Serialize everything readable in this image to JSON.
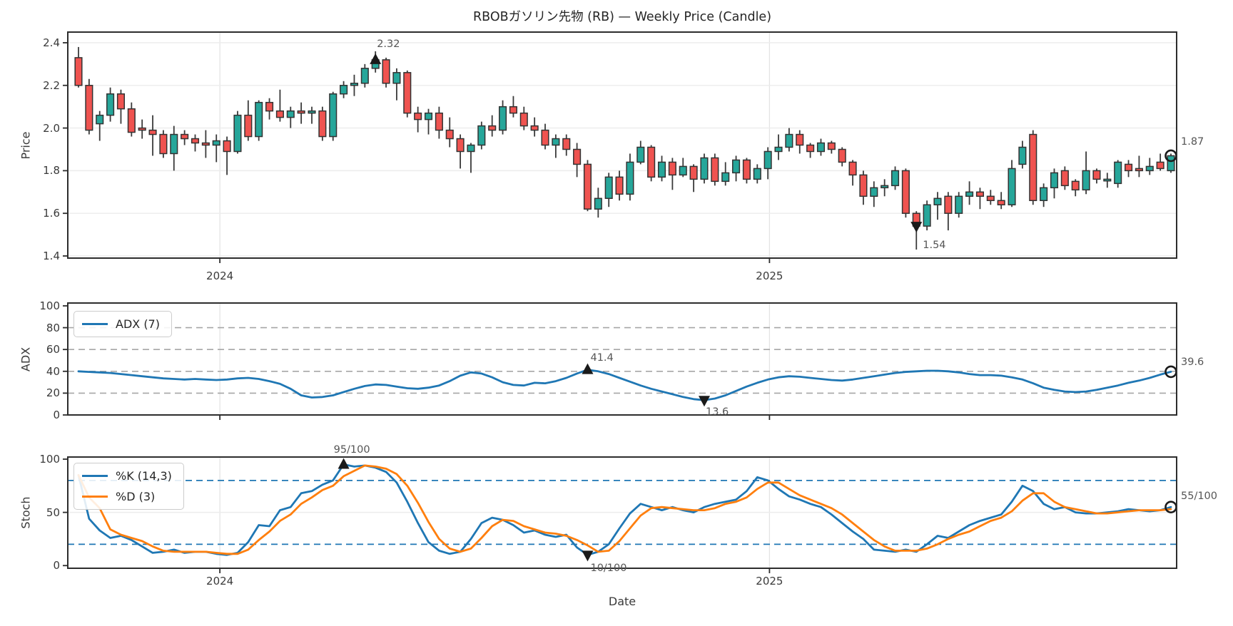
{
  "title": "RBOBガソリン先物 (RB) — Weekly Price (Candle)",
  "colors": {
    "up": "#26a69a",
    "down": "#ef5350",
    "candle_edge": "#333333",
    "wick": "#3a3a3a",
    "line_blue": "#1f77b4",
    "line_orange": "#ff7f0e",
    "grid_light": "#ececec",
    "grid_vertical": "#e4e4e4",
    "dashed_gray": "#a6a6a6",
    "dashed_blue": "#1f77b4",
    "spine": "#2d2d2d",
    "marker": "#1a1a1a",
    "text": "#3a3a3a",
    "annotation_text": "#555555"
  },
  "chart_data": [
    {
      "type": "candlestick",
      "panel": "price",
      "ylabel": "Price",
      "ylim": [
        1.39,
        2.45
      ],
      "yticks": [
        1.4,
        1.6,
        1.8,
        2.0,
        2.2,
        2.4
      ],
      "tick_decimals": 1,
      "xticks": [
        {
          "label": "2024",
          "index": 13.33
        },
        {
          "label": "2025",
          "index": 65.15
        }
      ],
      "candles": [
        [
          2.33,
          2.38,
          2.19,
          2.2
        ],
        [
          2.2,
          2.23,
          1.97,
          1.99
        ],
        [
          2.02,
          2.08,
          1.94,
          2.06
        ],
        [
          2.06,
          2.19,
          2.03,
          2.16
        ],
        [
          2.16,
          2.18,
          2.02,
          2.09
        ],
        [
          2.09,
          2.12,
          1.96,
          1.98
        ],
        [
          2.0,
          2.04,
          1.95,
          1.99
        ],
        [
          1.99,
          2.06,
          1.87,
          1.97
        ],
        [
          1.97,
          1.99,
          1.86,
          1.88
        ],
        [
          1.88,
          2.01,
          1.8,
          1.97
        ],
        [
          1.97,
          1.99,
          1.92,
          1.95
        ],
        [
          1.95,
          1.97,
          1.89,
          1.93
        ],
        [
          1.93,
          1.99,
          1.86,
          1.92
        ],
        [
          1.92,
          1.97,
          1.84,
          1.94
        ],
        [
          1.94,
          1.96,
          1.78,
          1.89
        ],
        [
          1.89,
          2.08,
          1.88,
          2.06
        ],
        [
          2.06,
          2.13,
          1.94,
          1.96
        ],
        [
          1.96,
          2.13,
          1.94,
          2.12
        ],
        [
          2.12,
          2.14,
          2.04,
          2.08
        ],
        [
          2.08,
          2.18,
          2.03,
          2.05
        ],
        [
          2.05,
          2.1,
          2.0,
          2.08
        ],
        [
          2.08,
          2.12,
          2.02,
          2.07
        ],
        [
          2.07,
          2.1,
          2.02,
          2.08
        ],
        [
          2.08,
          2.1,
          1.94,
          1.96
        ],
        [
          1.96,
          2.17,
          1.94,
          2.16
        ],
        [
          2.16,
          2.22,
          2.14,
          2.2
        ],
        [
          2.2,
          2.25,
          2.15,
          2.21
        ],
        [
          2.21,
          2.3,
          2.19,
          2.28
        ],
        [
          2.28,
          2.36,
          2.26,
          2.32
        ],
        [
          2.32,
          2.33,
          2.19,
          2.21
        ],
        [
          2.21,
          2.28,
          2.13,
          2.26
        ],
        [
          2.26,
          2.27,
          2.05,
          2.07
        ],
        [
          2.07,
          2.1,
          1.98,
          2.04
        ],
        [
          2.04,
          2.09,
          1.97,
          2.07
        ],
        [
          2.07,
          2.1,
          1.95,
          1.99
        ],
        [
          1.99,
          2.05,
          1.91,
          1.95
        ],
        [
          1.95,
          1.97,
          1.81,
          1.89
        ],
        [
          1.89,
          1.93,
          1.79,
          1.92
        ],
        [
          1.92,
          2.03,
          1.9,
          2.01
        ],
        [
          2.01,
          2.06,
          1.96,
          1.99
        ],
        [
          1.99,
          2.13,
          1.97,
          2.1
        ],
        [
          2.1,
          2.15,
          2.05,
          2.07
        ],
        [
          2.07,
          2.1,
          1.99,
          2.01
        ],
        [
          2.01,
          2.05,
          1.96,
          1.99
        ],
        [
          1.99,
          2.02,
          1.9,
          1.92
        ],
        [
          1.92,
          1.97,
          1.86,
          1.95
        ],
        [
          1.95,
          1.97,
          1.87,
          1.9
        ],
        [
          1.9,
          1.93,
          1.77,
          1.83
        ],
        [
          1.83,
          1.85,
          1.61,
          1.62
        ],
        [
          1.62,
          1.72,
          1.58,
          1.67
        ],
        [
          1.67,
          1.79,
          1.63,
          1.77
        ],
        [
          1.77,
          1.8,
          1.66,
          1.69
        ],
        [
          1.69,
          1.88,
          1.66,
          1.84
        ],
        [
          1.84,
          1.94,
          1.83,
          1.91
        ],
        [
          1.91,
          1.92,
          1.75,
          1.77
        ],
        [
          1.77,
          1.87,
          1.75,
          1.84
        ],
        [
          1.84,
          1.86,
          1.71,
          1.78
        ],
        [
          1.78,
          1.86,
          1.77,
          1.82
        ],
        [
          1.82,
          1.83,
          1.7,
          1.76
        ],
        [
          1.76,
          1.88,
          1.74,
          1.86
        ],
        [
          1.86,
          1.88,
          1.73,
          1.75
        ],
        [
          1.75,
          1.84,
          1.73,
          1.79
        ],
        [
          1.79,
          1.87,
          1.75,
          1.85
        ],
        [
          1.85,
          1.86,
          1.74,
          1.76
        ],
        [
          1.76,
          1.83,
          1.74,
          1.81
        ],
        [
          1.81,
          1.91,
          1.76,
          1.89
        ],
        [
          1.89,
          1.97,
          1.85,
          1.91
        ],
        [
          1.91,
          2.0,
          1.89,
          1.97
        ],
        [
          1.97,
          1.99,
          1.88,
          1.92
        ],
        [
          1.92,
          1.93,
          1.86,
          1.89
        ],
        [
          1.89,
          1.95,
          1.87,
          1.93
        ],
        [
          1.93,
          1.94,
          1.88,
          1.9
        ],
        [
          1.9,
          1.91,
          1.82,
          1.84
        ],
        [
          1.84,
          1.85,
          1.73,
          1.78
        ],
        [
          1.78,
          1.8,
          1.64,
          1.68
        ],
        [
          1.68,
          1.75,
          1.63,
          1.72
        ],
        [
          1.72,
          1.76,
          1.68,
          1.73
        ],
        [
          1.73,
          1.82,
          1.71,
          1.8
        ],
        [
          1.8,
          1.81,
          1.58,
          1.6
        ],
        [
          1.6,
          1.61,
          1.43,
          1.54
        ],
        [
          1.54,
          1.66,
          1.52,
          1.64
        ],
        [
          1.64,
          1.7,
          1.57,
          1.67
        ],
        [
          1.68,
          1.7,
          1.52,
          1.6
        ],
        [
          1.6,
          1.7,
          1.58,
          1.68
        ],
        [
          1.68,
          1.75,
          1.64,
          1.7
        ],
        [
          1.7,
          1.72,
          1.62,
          1.68
        ],
        [
          1.68,
          1.71,
          1.64,
          1.66
        ],
        [
          1.66,
          1.7,
          1.62,
          1.64
        ],
        [
          1.64,
          1.85,
          1.63,
          1.81
        ],
        [
          1.83,
          1.94,
          1.81,
          1.91
        ],
        [
          1.97,
          1.99,
          1.64,
          1.66
        ],
        [
          1.66,
          1.74,
          1.63,
          1.72
        ],
        [
          1.72,
          1.81,
          1.67,
          1.79
        ],
        [
          1.8,
          1.82,
          1.71,
          1.73
        ],
        [
          1.75,
          1.76,
          1.68,
          1.71
        ],
        [
          1.71,
          1.89,
          1.69,
          1.8
        ],
        [
          1.8,
          1.81,
          1.74,
          1.76
        ],
        [
          1.76,
          1.79,
          1.72,
          1.76
        ],
        [
          1.74,
          1.85,
          1.72,
          1.84
        ],
        [
          1.83,
          1.85,
          1.77,
          1.8
        ],
        [
          1.81,
          1.87,
          1.77,
          1.8
        ],
        [
          1.8,
          1.86,
          1.78,
          1.82
        ],
        [
          1.84,
          1.88,
          1.8,
          1.81
        ],
        [
          1.8,
          1.88,
          1.79,
          1.87
        ]
      ],
      "annotations": {
        "max": {
          "index": 28,
          "value": 2.32,
          "label": "2.32"
        },
        "min": {
          "index": 79,
          "value": 1.54,
          "label": "1.54"
        },
        "last": {
          "index": 103,
          "value": 1.87,
          "label": "1.87"
        }
      }
    },
    {
      "type": "line",
      "panel": "adx",
      "ylabel": "ADX",
      "ylim": [
        0,
        102.6
      ],
      "yticks": [
        0,
        20,
        40,
        60,
        80,
        100
      ],
      "tick_decimals": 0,
      "dashed_gray_levels": [
        20,
        40,
        60,
        80
      ],
      "series": [
        {
          "name": "ADX (7)",
          "color": "#1f77b4",
          "values": [
            40,
            39.5,
            39,
            38.5,
            37.5,
            36.5,
            35.5,
            34.5,
            33.5,
            33,
            32.5,
            33,
            32.5,
            32,
            32.5,
            33.5,
            34,
            33,
            31,
            28.5,
            24,
            18,
            16,
            16.5,
            18,
            21,
            24,
            26.5,
            28,
            27.5,
            26,
            24.5,
            24,
            25,
            27,
            31,
            36,
            39,
            38,
            34.5,
            30,
            27.5,
            27,
            29.5,
            29,
            31,
            34,
            38,
            41.4,
            40,
            37.5,
            34,
            30.5,
            27,
            24,
            21.5,
            19,
            16.5,
            14.5,
            13.6,
            15,
            18,
            22,
            26,
            29.5,
            32.5,
            34.5,
            35.5,
            35,
            34,
            33,
            32,
            31.5,
            32.5,
            34,
            35.5,
            37,
            38.5,
            39.5,
            40,
            40.5,
            40.5,
            40,
            39,
            37.5,
            36.5,
            36.5,
            36,
            34.5,
            32.5,
            29,
            25,
            23,
            21.5,
            21,
            21.5,
            23,
            25,
            27,
            29.5,
            31.5,
            34,
            37,
            39.6
          ]
        }
      ],
      "annotations": {
        "max": {
          "index": 48,
          "value": 41.4,
          "label": "41.4"
        },
        "min": {
          "index": 59,
          "value": 13.6,
          "label": "13.6"
        },
        "last": {
          "index": 103,
          "value": 39.6,
          "label": "39.6"
        }
      }
    },
    {
      "type": "line",
      "panel": "stoch",
      "ylabel": "Stoch",
      "xlabel": "Date",
      "ylim": [
        -2.5,
        102
      ],
      "yticks": [
        0,
        50,
        100
      ],
      "tick_decimals": 0,
      "dashed_blue_levels": [
        20,
        80
      ],
      "solid_grid_levels": [
        50
      ],
      "series": [
        {
          "name": "%K (14,3)",
          "color": "#1f77b4",
          "values": [
            85,
            44,
            33,
            26,
            28,
            24,
            18,
            12,
            13,
            15,
            12,
            13,
            13,
            11,
            10,
            12,
            22,
            38,
            37,
            52,
            55,
            68,
            70,
            76,
            80,
            95,
            93,
            94,
            92,
            88,
            78,
            60,
            40,
            22,
            14,
            11,
            13,
            25,
            40,
            45,
            43,
            38,
            31,
            33,
            29,
            27,
            29,
            17,
            10,
            13,
            20,
            35,
            49,
            58,
            55,
            52,
            55,
            52,
            50,
            55,
            58,
            60,
            62,
            70,
            83,
            80,
            72,
            65,
            62,
            58,
            55,
            48,
            40,
            32,
            25,
            15,
            14,
            13,
            15,
            13,
            20,
            28,
            26,
            32,
            38,
            42,
            45,
            48,
            60,
            75,
            70,
            58,
            53,
            55,
            50,
            49,
            49,
            50,
            51,
            53,
            52,
            51,
            52,
            55
          ]
        },
        {
          "name": "%D (3)",
          "color": "#ff7f0e",
          "values": [
            85,
            64,
            54,
            34,
            29,
            26,
            23,
            18,
            14,
            13,
            13,
            13,
            13,
            12,
            11,
            11,
            15,
            24,
            32,
            42,
            48,
            58,
            64,
            71,
            75,
            84,
            89,
            94,
            93,
            91,
            86,
            75,
            59,
            41,
            25,
            16,
            13,
            16,
            26,
            37,
            43,
            42,
            37,
            34,
            31,
            30,
            28,
            24,
            19,
            13,
            14,
            23,
            35,
            47,
            54,
            55,
            54,
            53,
            52,
            52,
            54,
            58,
            60,
            64,
            72,
            78,
            78,
            72,
            66,
            62,
            58,
            54,
            48,
            40,
            32,
            24,
            18,
            14,
            14,
            14,
            16,
            20,
            25,
            29,
            32,
            37,
            42,
            45,
            51,
            61,
            68,
            68,
            60,
            55,
            53,
            51,
            49,
            49,
            50,
            51,
            52,
            52,
            52,
            53
          ]
        }
      ],
      "annotations": {
        "max": {
          "index": 25,
          "value": 95,
          "label": "95/100"
        },
        "min": {
          "index": 48,
          "value": 10,
          "label": "10/100"
        },
        "last": {
          "index": 103,
          "value": 55,
          "label": "55/100"
        }
      }
    }
  ]
}
